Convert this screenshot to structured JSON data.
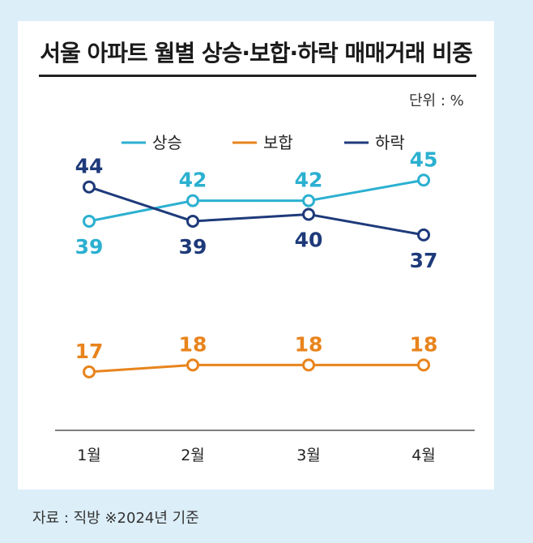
{
  "page": {
    "title": "서울 아파트 월별 상승·보합·하락 매매거래 비중",
    "unit": "단위 : %",
    "source": "자료 : 직방 ※2024년 기준"
  },
  "chart_data": {
    "type": "line",
    "title": "서울 아파트 월별 상승·보합·하락 매매거래 비중",
    "categories": [
      "1월",
      "2월",
      "3월",
      "4월"
    ],
    "series": [
      {
        "name": "상승",
        "color": "#2bb0d0",
        "values": [
          39,
          42,
          42,
          45
        ]
      },
      {
        "name": "보합",
        "color": "#e8841c",
        "values": [
          17,
          18,
          18,
          18
        ]
      },
      {
        "name": "하락",
        "color": "#1e3a7a",
        "values": [
          44,
          39,
          40,
          37
        ]
      }
    ],
    "ylim": [
      10,
      50
    ],
    "grid": false,
    "legend": "top",
    "unit": "%"
  }
}
